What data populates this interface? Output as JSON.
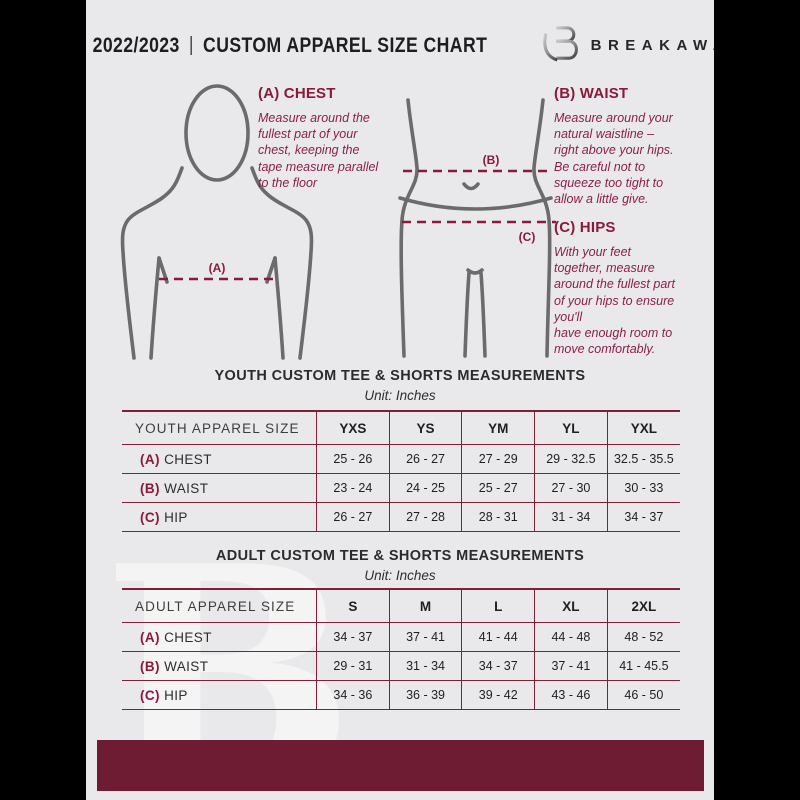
{
  "header": {
    "year": "2022/2023",
    "divider": "|",
    "title": "CUSTOM APPAREL SIZE CHART",
    "brand": "BREAKAWAY"
  },
  "guide": {
    "chest": {
      "heading": "(A) CHEST",
      "body": "Measure around the\nfullest part of your\nchest, keeping the\ntape measure parallel\nto the floor",
      "marker": "(A)"
    },
    "waist": {
      "heading": "(B) WAIST",
      "body": "Measure around your\nnatural waistline –\nright above your hips.\nBe careful not to\nsqueeze too tight to\nallow a little give.",
      "marker": "(B)"
    },
    "hips": {
      "heading": "(C) HIPS",
      "body": "With your feet\ntogether, measure\naround the fullest part\nof your hips to ensure\nyou'll\nhave enough room to\nmove comfortably.",
      "marker": "(C)"
    }
  },
  "youth": {
    "title": "YOUTH CUSTOM TEE & SHORTS MEASUREMENTS",
    "subtitle": "Unit: Inches",
    "table": {
      "headers": [
        "YOUTH APPAREL SIZE",
        "YXS",
        "YS",
        "YM",
        "YL",
        "YXL"
      ],
      "rows": [
        {
          "prefix": "(A)",
          "label": "CHEST",
          "values": [
            "25 - 26",
            "26 - 27",
            "27 - 29",
            "29 - 32.5",
            "32.5 - 35.5"
          ]
        },
        {
          "prefix": "(B)",
          "label": "WAIST",
          "values": [
            "23 - 24",
            "24 - 25",
            "25 - 27",
            "27 - 30",
            "30 - 33"
          ]
        },
        {
          "prefix": "(C)",
          "label": "HIP",
          "values": [
            "26 - 27",
            "27 - 28",
            "28 - 31",
            "31 - 34",
            "34 - 37"
          ]
        }
      ]
    }
  },
  "adult": {
    "title": "ADULT CUSTOM TEE & SHORTS MEASUREMENTS",
    "subtitle": "Unit: Inches",
    "table": {
      "headers": [
        "ADULT APPAREL SIZE",
        "S",
        "M",
        "L",
        "XL",
        "2XL"
      ],
      "rows": [
        {
          "prefix": "(A)",
          "label": "CHEST",
          "values": [
            "34 - 37",
            "37 - 41",
            "41 - 44",
            "44 - 48",
            "48 - 52"
          ]
        },
        {
          "prefix": "(B)",
          "label": "WAIST",
          "values": [
            "29 - 31",
            "31 - 34",
            "34 - 37",
            "37 - 41",
            "41 - 45.5"
          ]
        },
        {
          "prefix": "(C)",
          "label": "HIP",
          "values": [
            "34 - 36",
            "36 - 39",
            "39 - 42",
            "43 - 46",
            "46 - 50"
          ]
        }
      ]
    }
  },
  "watermark_letter": "B",
  "colors": {
    "accent_maroon": "#8a1a3c",
    "table_border": "#7d2038",
    "footer_bar": "#6e1c33",
    "figure_stroke": "#6b6b6b",
    "page_background": "#e9e9eb",
    "outer_background": "#000000"
  }
}
